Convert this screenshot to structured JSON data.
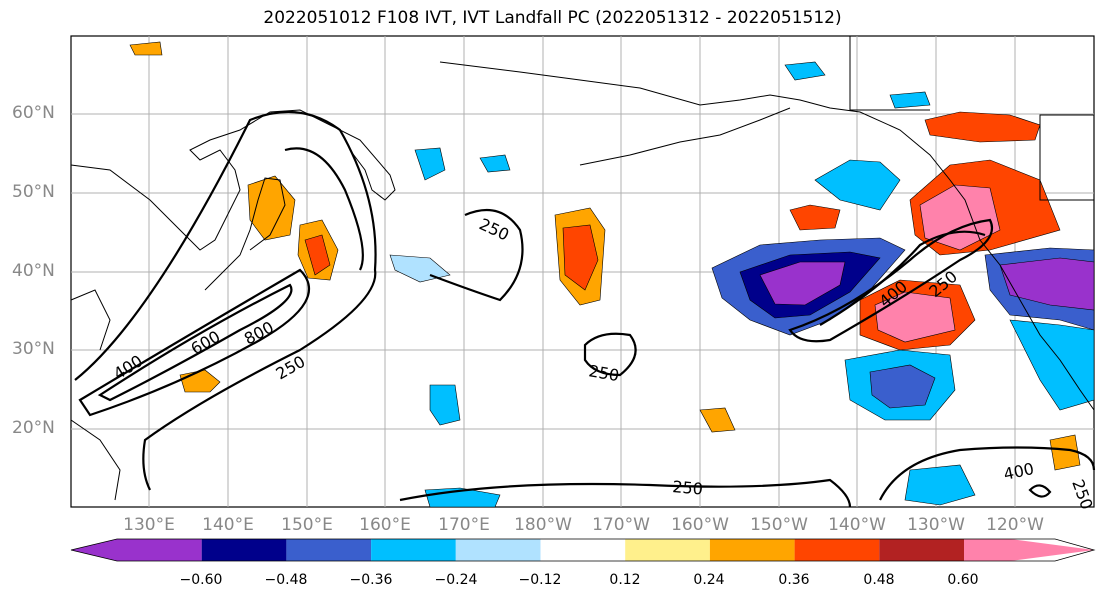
{
  "title": "2022051012 F108 IVT, IVT Landfall PC (2022051312 - 2022051512)",
  "lat_labels": [
    "60°N",
    "50°N",
    "40°N",
    "30°N",
    "20°N"
  ],
  "lon_labels": [
    "130°E",
    "140°E",
    "150°E",
    "160°E",
    "170°E",
    "180°W",
    "170°W",
    "160°W",
    "150°W",
    "140°W",
    "130°W",
    "120°W"
  ],
  "contour_labels": [
    "400",
    "600",
    "800",
    "250",
    "250",
    "250",
    "400",
    "250",
    "250",
    "400",
    "250"
  ],
  "colorbar": {
    "colors": [
      "#9932cc",
      "#00008b",
      "#3a5fcd",
      "#00bfff",
      "#b0e2ff",
      "#ffffff",
      "#fff08c",
      "#ffa500",
      "#ff4500",
      "#b22222",
      "#ff82ab"
    ],
    "tick_labels": [
      "−0.60",
      "−0.48",
      "−0.36",
      "−0.24",
      "−0.12",
      "0.12",
      "0.24",
      "0.36",
      "0.48",
      "0.60"
    ]
  }
}
